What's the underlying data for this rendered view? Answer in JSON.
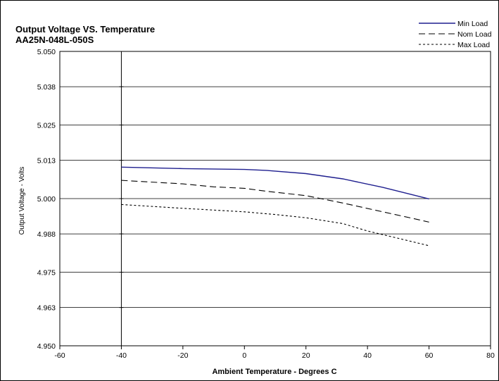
{
  "chart_data": {
    "type": "line",
    "title": "Output Voltage VS. Temperature",
    "subtitle": "AA25N-048L-050S",
    "xlabel": "Ambient Temperature - Degrees C",
    "ylabel": "Output Voltage - Volts",
    "xlim": [
      -60,
      80
    ],
    "ylim": [
      4.95,
      5.05
    ],
    "x_ticks": [
      -60,
      -40,
      -20,
      0,
      20,
      40,
      60,
      80
    ],
    "y_ticks": [
      "4.950",
      "4.963",
      "4.975",
      "4.988",
      "5.000",
      "5.013",
      "5.025",
      "5.038",
      "5.050"
    ],
    "grid": "horizontal",
    "legend_position": "top-right",
    "series": [
      {
        "name": "Min Load",
        "color": "#1f1f8f",
        "dash": "solid",
        "x": [
          -40,
          -20,
          0,
          7,
          20,
          32,
          45,
          60
        ],
        "y": [
          5.0107,
          5.0102,
          5.0099,
          5.0096,
          5.0085,
          5.0067,
          5.0038,
          4.9999
        ]
      },
      {
        "name": "Nom Load",
        "color": "#000000",
        "dash": "long",
        "x": [
          -40,
          -20,
          -10,
          0,
          7,
          20,
          32,
          45,
          55,
          60
        ],
        "y": [
          5.0062,
          5.005,
          5.004,
          5.0035,
          5.0025,
          5.001,
          4.9985,
          4.9955,
          4.9932,
          4.992
        ]
      },
      {
        "name": "Max Load",
        "color": "#000000",
        "dash": "short",
        "x": [
          -40,
          -20,
          0,
          10,
          20,
          32,
          40,
          50,
          60
        ],
        "y": [
          4.998,
          4.9967,
          4.9955,
          4.9946,
          4.9935,
          4.9915,
          4.989,
          4.9865,
          4.984
        ]
      }
    ]
  }
}
